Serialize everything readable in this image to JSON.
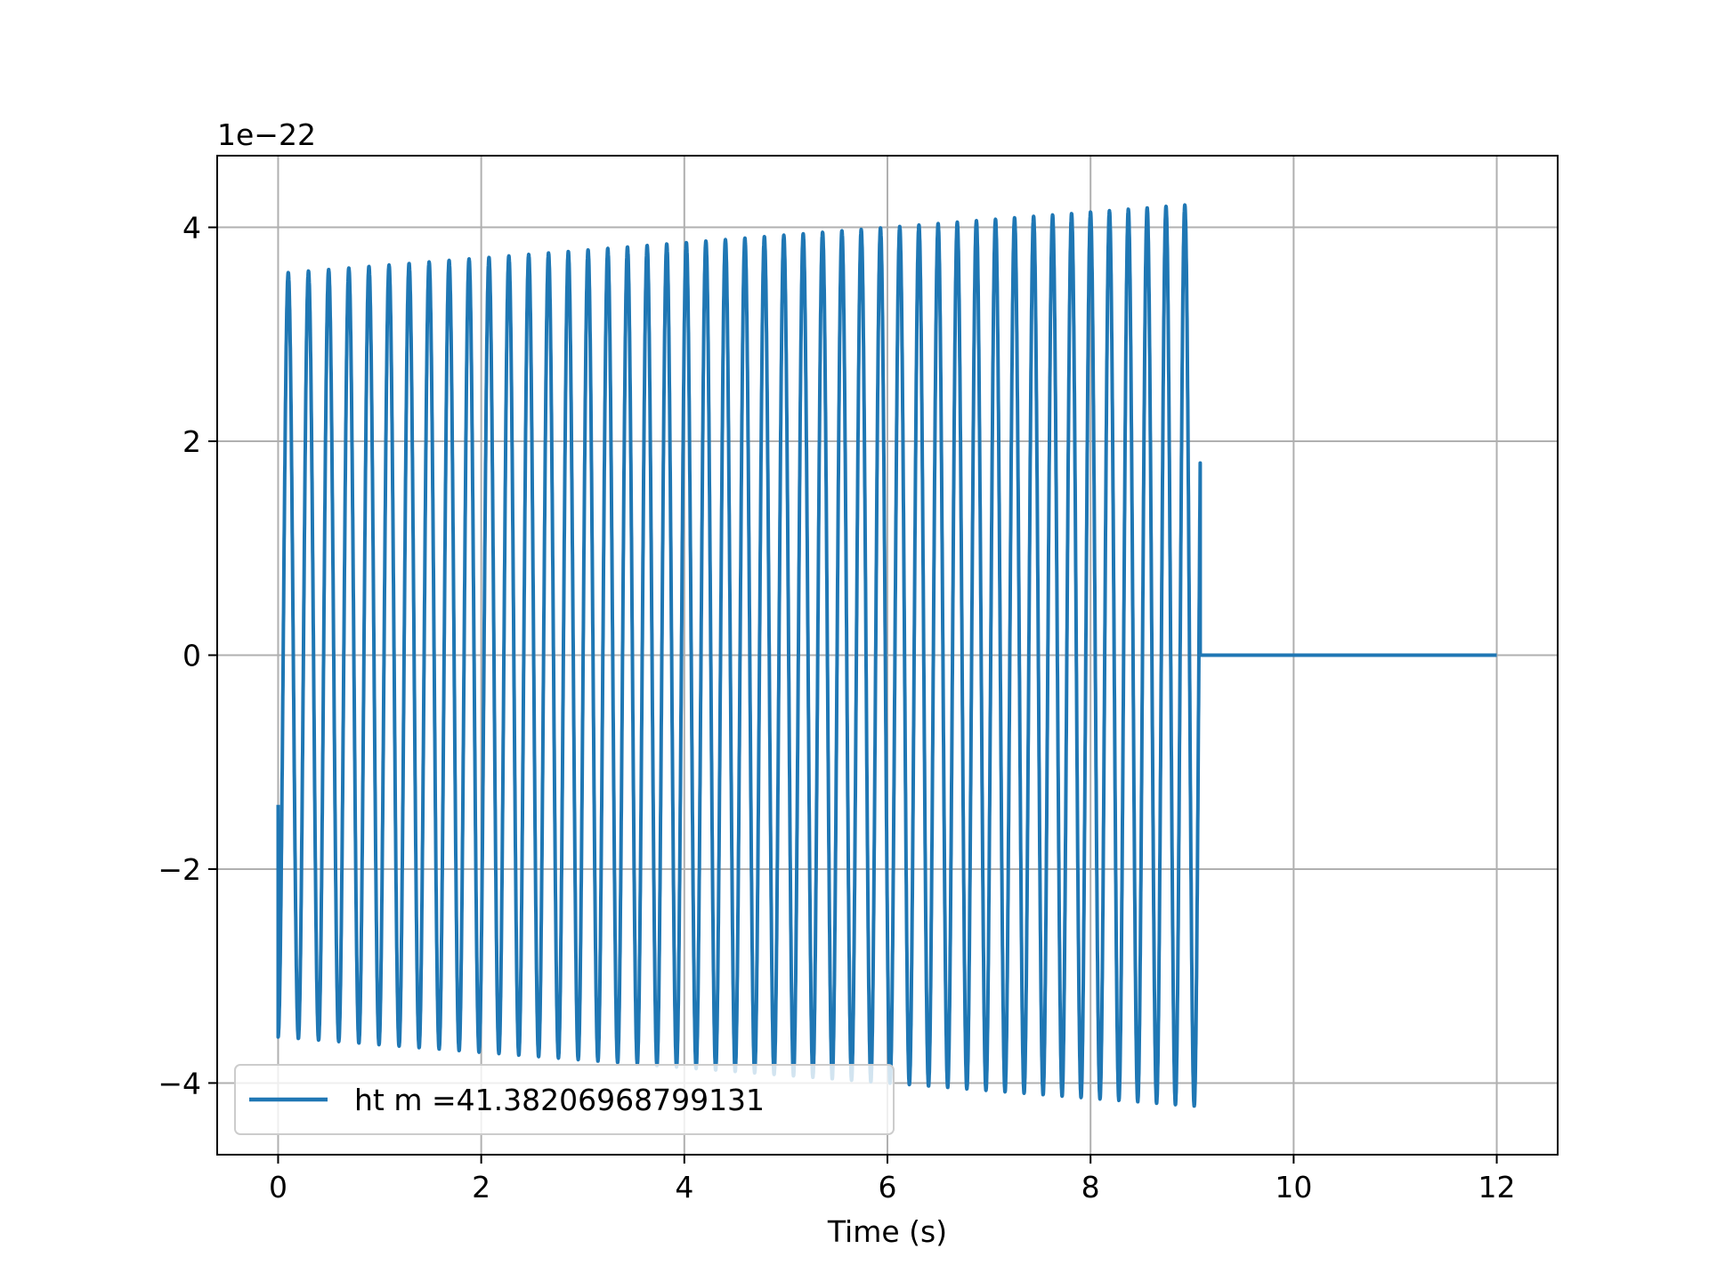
{
  "chart_data": {
    "type": "line",
    "title": "",
    "xlabel": "Time (s)",
    "ylabel": "",
    "y_scale_label": "1e−22",
    "xlim": [
      -0.6,
      12.6
    ],
    "ylim": [
      -4.67,
      4.67
    ],
    "grid": true,
    "legend_placement": "lower-left",
    "x_ticks": [
      0,
      2,
      4,
      6,
      8,
      10,
      12
    ],
    "x_tick_labels": [
      "0",
      "2",
      "4",
      "6",
      "8",
      "10",
      "12"
    ],
    "y_ticks": [
      -4,
      -2,
      0,
      2,
      4
    ],
    "y_tick_labels": [
      "−4",
      "−2",
      "0",
      "2",
      "4"
    ],
    "series": [
      {
        "name": "ht m =41.38206968799131",
        "color": "#1f77b4",
        "signal": {
          "t_start": 0.0,
          "t_merge": 9.08,
          "t_end": 12.0,
          "cycles": 45.5,
          "amp_start": 3.57,
          "amp_end": 4.22,
          "initial_value": -1.4,
          "after_merge_value": 0.0
        }
      }
    ]
  },
  "colors": {
    "series": "#1f77b4",
    "grid": "#b0b0b0",
    "axes": "#000000",
    "background": "#ffffff"
  }
}
